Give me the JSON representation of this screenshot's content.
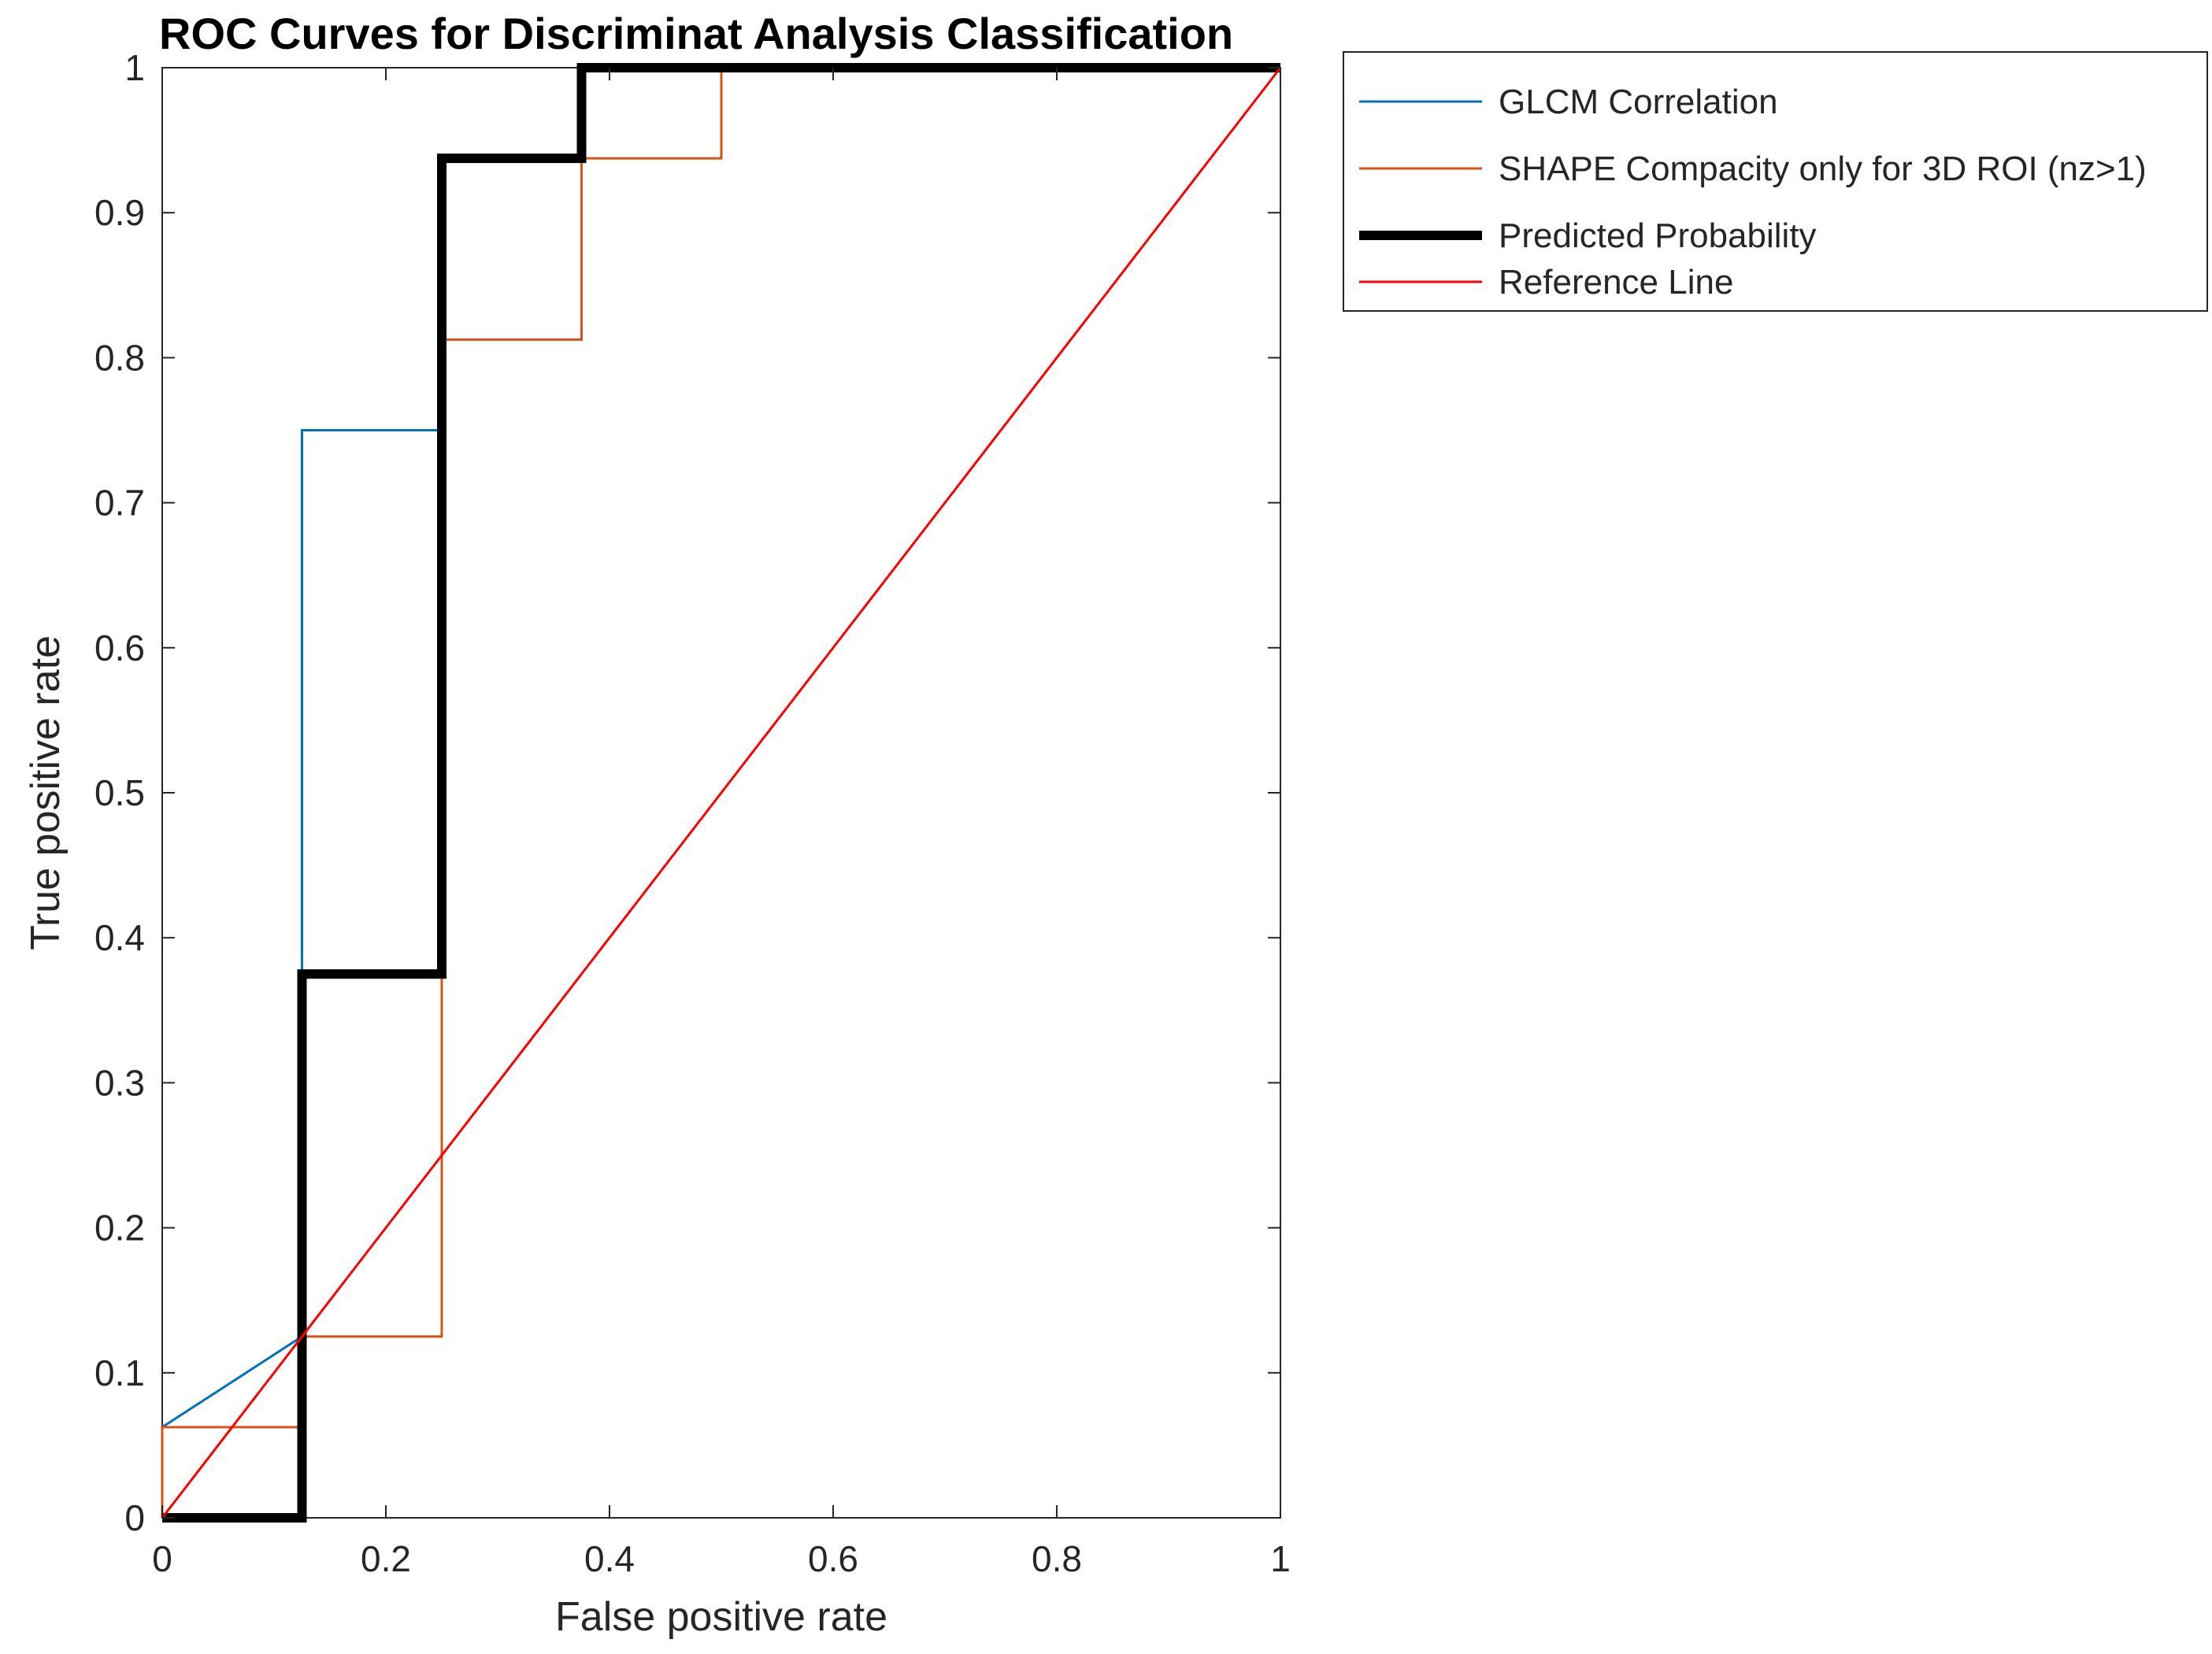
{
  "chart_data": {
    "type": "line",
    "title": "ROC Curves for Discriminat Analysis Classification",
    "xlabel": "False positive rate",
    "ylabel": "True positive rate",
    "xlim": [
      0,
      1
    ],
    "ylim": [
      0,
      1
    ],
    "xticks": [
      "0",
      "0.2",
      "0.4",
      "0.6",
      "0.8",
      "1"
    ],
    "yticks": [
      "0",
      "0.1",
      "0.2",
      "0.3",
      "0.4",
      "0.5",
      "0.6",
      "0.7",
      "0.8",
      "0.9",
      "1"
    ],
    "grid": false,
    "legend_position": "outside-top-right",
    "series": [
      {
        "name": "GLCM  Correlation",
        "color": "#0072BD",
        "points": [
          [
            0,
            0.0625
          ],
          [
            0.125,
            0.125
          ],
          [
            0.125,
            0.75
          ],
          [
            0.25,
            0.75
          ],
          [
            0.25,
            0.9375
          ],
          [
            0.375,
            0.9375
          ],
          [
            0.375,
            1.0
          ],
          [
            1.0,
            1.0
          ]
        ]
      },
      {
        "name": "SHAPE Compacity only for 3D ROI (nz>1)",
        "color": "#D95319",
        "points": [
          [
            0,
            0
          ],
          [
            0,
            0.0625
          ],
          [
            0.125,
            0.0625
          ],
          [
            0.125,
            0.125
          ],
          [
            0.25,
            0.125
          ],
          [
            0.25,
            0.8125
          ],
          [
            0.375,
            0.8125
          ],
          [
            0.375,
            0.9375
          ],
          [
            0.5,
            0.9375
          ],
          [
            0.5,
            1.0
          ],
          [
            1.0,
            1.0
          ]
        ]
      },
      {
        "name": "Predicted Probability",
        "color": "#000000",
        "points": [
          [
            0,
            0
          ],
          [
            0.125,
            0
          ],
          [
            0.125,
            0.375
          ],
          [
            0.25,
            0.375
          ],
          [
            0.25,
            0.9375
          ],
          [
            0.375,
            0.9375
          ],
          [
            0.375,
            1.0
          ],
          [
            1.0,
            1.0
          ]
        ]
      },
      {
        "name": "Reference Line",
        "color": "#FF0000",
        "points": [
          [
            0,
            0
          ],
          [
            1,
            1
          ]
        ]
      }
    ]
  }
}
